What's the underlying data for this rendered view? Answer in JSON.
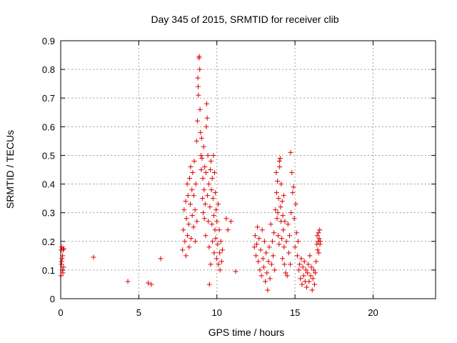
{
  "chart_data": {
    "type": "scatter",
    "title": "Day 345 of 2015, SRMTID for receiver clib",
    "xlabel": "GPS time / hours",
    "ylabel": "SRMTID / TECUs",
    "xlim": [
      0,
      24
    ],
    "ylim": [
      0,
      0.9
    ],
    "xticks": [
      0,
      5,
      10,
      15,
      20
    ],
    "xtick_labels": [
      "0",
      "5",
      "10",
      "15",
      "20"
    ],
    "yticks": [
      0,
      0.1,
      0.2,
      0.3,
      0.4,
      0.5,
      0.6,
      0.7,
      0.8,
      0.9
    ],
    "ytick_labels": [
      "0",
      "0.1",
      "0.2",
      "0.3",
      "0.4",
      "0.5",
      "0.6",
      "0.7",
      "0.8",
      "0.9"
    ],
    "grid": true,
    "marker": "+",
    "color": "#e00000",
    "series": [
      {
        "name": "SRMTID",
        "points": [
          [
            0.02,
            0.08
          ],
          [
            0.04,
            0.17
          ],
          [
            0.06,
            0.13
          ],
          [
            0.08,
            0.18
          ],
          [
            0.1,
            0.1
          ],
          [
            0.12,
            0.15
          ],
          [
            0.14,
            0.09
          ],
          [
            0.16,
            0.17
          ],
          [
            0.18,
            0.11
          ],
          [
            0.2,
            0.175
          ],
          [
            0.05,
            0.12
          ],
          [
            0.09,
            0.14
          ],
          [
            2.1,
            0.145
          ],
          [
            4.3,
            0.06
          ],
          [
            5.6,
            0.055
          ],
          [
            5.8,
            0.05
          ],
          [
            6.4,
            0.14
          ],
          [
            7.8,
            0.17
          ],
          [
            7.85,
            0.24
          ],
          [
            7.9,
            0.31
          ],
          [
            7.95,
            0.2
          ],
          [
            8.0,
            0.34
          ],
          [
            8.02,
            0.15
          ],
          [
            8.05,
            0.28
          ],
          [
            8.1,
            0.4
          ],
          [
            8.12,
            0.22
          ],
          [
            8.15,
            0.36
          ],
          [
            8.2,
            0.26
          ],
          [
            8.22,
            0.18
          ],
          [
            8.25,
            0.42
          ],
          [
            8.3,
            0.33
          ],
          [
            8.32,
            0.46
          ],
          [
            8.35,
            0.21
          ],
          [
            8.4,
            0.38
          ],
          [
            8.42,
            0.29
          ],
          [
            8.45,
            0.44
          ],
          [
            8.5,
            0.25
          ],
          [
            8.52,
            0.36
          ],
          [
            8.55,
            0.48
          ],
          [
            8.6,
            0.31
          ],
          [
            8.62,
            0.2
          ],
          [
            8.65,
            0.4
          ],
          [
            8.7,
            0.55
          ],
          [
            8.72,
            0.27
          ],
          [
            8.75,
            0.62
          ],
          [
            8.78,
            0.77
          ],
          [
            8.8,
            0.74
          ],
          [
            8.82,
            0.71
          ],
          [
            8.85,
            0.84
          ],
          [
            8.87,
            0.845
          ],
          [
            8.9,
            0.8
          ],
          [
            8.92,
            0.66
          ],
          [
            8.95,
            0.58
          ],
          [
            8.98,
            0.5
          ],
          [
            9.0,
            0.45
          ],
          [
            9.02,
            0.56
          ],
          [
            9.05,
            0.49
          ],
          [
            9.08,
            0.35
          ],
          [
            9.1,
            0.42
          ],
          [
            9.12,
            0.3
          ],
          [
            9.15,
            0.53
          ],
          [
            9.18,
            0.38
          ],
          [
            9.2,
            0.28
          ],
          [
            9.22,
            0.46
          ],
          [
            9.25,
            0.33
          ],
          [
            9.28,
            0.22
          ],
          [
            9.3,
            0.44
          ],
          [
            9.32,
            0.6
          ],
          [
            9.35,
            0.68
          ],
          [
            9.38,
            0.63
          ],
          [
            9.4,
            0.36
          ],
          [
            9.42,
            0.5
          ],
          [
            9.45,
            0.27
          ],
          [
            9.48,
            0.4
          ],
          [
            9.5,
            0.18
          ],
          [
            9.52,
            0.05
          ],
          [
            9.55,
            0.32
          ],
          [
            9.58,
            0.45
          ],
          [
            9.6,
            0.12
          ],
          [
            9.62,
            0.48
          ],
          [
            9.65,
            0.38
          ],
          [
            9.68,
            0.26
          ],
          [
            9.7,
            0.42
          ],
          [
            9.72,
            0.2
          ],
          [
            9.75,
            0.35
          ],
          [
            9.78,
            0.5
          ],
          [
            9.8,
            0.29
          ],
          [
            9.82,
            0.16
          ],
          [
            9.85,
            0.44
          ],
          [
            9.88,
            0.24
          ],
          [
            9.9,
            0.37
          ],
          [
            9.92,
            0.21
          ],
          [
            9.95,
            0.31
          ],
          [
            9.98,
            0.14
          ],
          [
            10.0,
            0.27
          ],
          [
            10.05,
            0.19
          ],
          [
            10.08,
            0.33
          ],
          [
            10.1,
            0.12
          ],
          [
            10.15,
            0.24
          ],
          [
            10.18,
            0.16
          ],
          [
            10.2,
            0.1
          ],
          [
            10.25,
            0.2
          ],
          [
            10.3,
            0.13
          ],
          [
            10.35,
            0.17
          ],
          [
            10.6,
            0.28
          ],
          [
            10.7,
            0.24
          ],
          [
            10.9,
            0.27
          ],
          [
            11.2,
            0.095
          ],
          [
            12.4,
            0.18
          ],
          [
            12.45,
            0.22
          ],
          [
            12.5,
            0.15
          ],
          [
            12.55,
            0.19
          ],
          [
            12.6,
            0.25
          ],
          [
            12.65,
            0.13
          ],
          [
            12.7,
            0.21
          ],
          [
            12.75,
            0.1
          ],
          [
            12.8,
            0.17
          ],
          [
            12.85,
            0.08
          ],
          [
            12.9,
            0.24
          ],
          [
            12.95,
            0.14
          ],
          [
            13.0,
            0.11
          ],
          [
            13.05,
            0.2
          ],
          [
            13.1,
            0.06
          ],
          [
            13.15,
            0.16
          ],
          [
            13.2,
            0.09
          ],
          [
            13.25,
            0.03
          ],
          [
            13.3,
            0.13
          ],
          [
            13.35,
            0.18
          ],
          [
            13.4,
            0.07
          ],
          [
            13.45,
            0.26
          ],
          [
            13.5,
            0.12
          ],
          [
            13.55,
            0.2
          ],
          [
            13.6,
            0.15
          ],
          [
            13.65,
            0.23
          ],
          [
            13.7,
            0.1
          ],
          [
            13.75,
            0.31
          ],
          [
            13.8,
            0.44
          ],
          [
            13.82,
            0.37
          ],
          [
            13.85,
            0.28
          ],
          [
            13.88,
            0.41
          ],
          [
            13.9,
            0.3
          ],
          [
            13.92,
            0.22
          ],
          [
            13.95,
            0.35
          ],
          [
            13.98,
            0.19
          ],
          [
            14.0,
            0.48
          ],
          [
            14.02,
            0.46
          ],
          [
            14.05,
            0.49
          ],
          [
            14.08,
            0.32
          ],
          [
            14.1,
            0.27
          ],
          [
            14.12,
            0.4
          ],
          [
            14.15,
            0.21
          ],
          [
            14.18,
            0.34
          ],
          [
            14.2,
            0.14
          ],
          [
            14.22,
            0.29
          ],
          [
            14.25,
            0.24
          ],
          [
            14.28,
            0.36
          ],
          [
            14.3,
            0.18
          ],
          [
            14.32,
            0.12
          ],
          [
            14.35,
            0.27
          ],
          [
            14.4,
            0.09
          ],
          [
            14.45,
            0.2
          ],
          [
            14.5,
            0.08
          ],
          [
            14.55,
            0.26
          ],
          [
            14.6,
            0.16
          ],
          [
            14.65,
            0.22
          ],
          [
            14.7,
            0.12
          ],
          [
            14.72,
            0.51
          ],
          [
            14.75,
            0.3
          ],
          [
            14.8,
            0.44
          ],
          [
            14.85,
            0.37
          ],
          [
            14.9,
            0.39
          ],
          [
            14.95,
            0.28
          ],
          [
            15.0,
            0.18
          ],
          [
            15.05,
            0.33
          ],
          [
            15.1,
            0.23
          ],
          [
            15.15,
            0.15
          ],
          [
            15.2,
            0.2
          ],
          [
            15.25,
            0.1
          ],
          [
            15.3,
            0.12
          ],
          [
            15.35,
            0.07
          ],
          [
            15.4,
            0.14
          ],
          [
            15.45,
            0.05
          ],
          [
            15.5,
            0.11
          ],
          [
            15.55,
            0.08
          ],
          [
            15.6,
            0.13
          ],
          [
            15.65,
            0.06
          ],
          [
            15.7,
            0.1
          ],
          [
            15.75,
            0.04
          ],
          [
            15.8,
            0.09
          ],
          [
            15.85,
            0.12
          ],
          [
            15.9,
            0.06
          ],
          [
            15.95,
            0.15
          ],
          [
            16.0,
            0.08
          ],
          [
            16.05,
            0.11
          ],
          [
            16.1,
            0.03
          ],
          [
            16.15,
            0.07
          ],
          [
            16.2,
            0.1
          ],
          [
            16.25,
            0.05
          ],
          [
            16.3,
            0.09
          ],
          [
            16.35,
            0.13
          ],
          [
            16.4,
            0.19
          ],
          [
            16.42,
            0.22
          ],
          [
            16.45,
            0.17
          ],
          [
            16.48,
            0.2
          ],
          [
            16.5,
            0.23
          ],
          [
            16.52,
            0.16
          ],
          [
            16.55,
            0.21
          ],
          [
            16.58,
            0.24
          ],
          [
            16.6,
            0.19
          ],
          [
            16.62,
            0.2
          ]
        ]
      }
    ]
  }
}
